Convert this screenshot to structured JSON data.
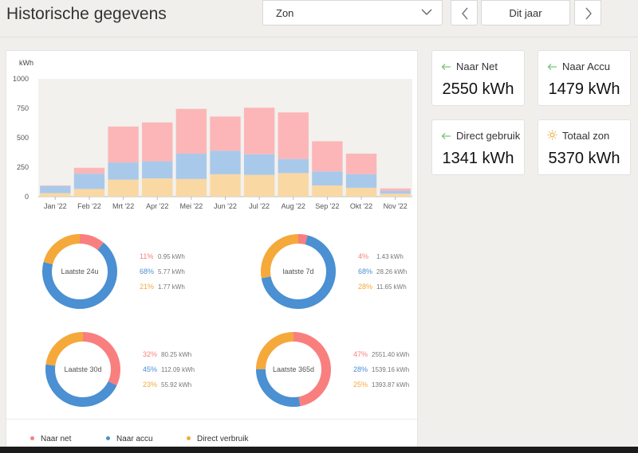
{
  "header": {
    "title": "Historische gegevens",
    "source_select": "Zon",
    "period": "Dit jaar"
  },
  "stats": [
    {
      "id": "net",
      "label": "Naar Net",
      "value": "2550 kWh",
      "icon": "arrow-left-icon"
    },
    {
      "id": "accu",
      "label": "Naar Accu",
      "value": "1479 kWh",
      "icon": "arrow-left-icon"
    },
    {
      "id": "direct",
      "label": "Direct gebruik",
      "value": "1341 kWh",
      "icon": "arrow-left-icon"
    },
    {
      "id": "total",
      "label": "Totaal zon",
      "value": "5370 kWh",
      "icon": "sun-icon"
    }
  ],
  "colors": {
    "naar_net": "#f97f7f",
    "naar_accu": "#4a90d2",
    "direct": "#f5a93a",
    "bar_net": "#fcb6b7",
    "bar_accu": "#a9c9ea",
    "bar_direct": "#f9d8a4",
    "icon_green": "#7cc576",
    "icon_sun": "#e8a93a",
    "chart_bg": "#f2f1ee"
  },
  "chart_data": {
    "type": "bar",
    "stacked": true,
    "ylabel": "kWh",
    "ylim": [
      0,
      1000
    ],
    "yticks": [
      0,
      250,
      500,
      750,
      1000
    ],
    "categories": [
      "Jan '22",
      "Feb '22",
      "Mrt '22",
      "Apr '22",
      "Mei '22",
      "Jun '22",
      "Jul '22",
      "Aug '22",
      "Sep '22",
      "Okt '22",
      "Nov '22"
    ],
    "series": [
      {
        "name": "Direct verbruik",
        "values": [
          30,
          65,
          145,
          155,
          150,
          190,
          185,
          200,
          95,
          75,
          25
        ]
      },
      {
        "name": "Naar accu",
        "values": [
          60,
          130,
          145,
          145,
          215,
          200,
          175,
          120,
          120,
          115,
          25
        ]
      },
      {
        "name": "Naar net",
        "values": [
          5,
          50,
          305,
          330,
          380,
          290,
          395,
          395,
          255,
          175,
          20
        ]
      }
    ],
    "legend": [
      "Naar net",
      "Naar accu",
      "Direct verbruik"
    ],
    "legend_position": "bottom",
    "grid": false
  },
  "donuts": [
    {
      "label": "Laatste 24u",
      "items": [
        {
          "pct": 11,
          "pct_text": "11%",
          "kwh": "0.95 kWh"
        },
        {
          "pct": 68,
          "pct_text": "68%",
          "kwh": "5.77 kWh"
        },
        {
          "pct": 21,
          "pct_text": "21%",
          "kwh": "1.77 kWh"
        }
      ]
    },
    {
      "label": "laatste 7d",
      "items": [
        {
          "pct": 4,
          "pct_text": "4%",
          "kwh": "1.43 kWh"
        },
        {
          "pct": 68,
          "pct_text": "68%",
          "kwh": "28.26 kWh"
        },
        {
          "pct": 28,
          "pct_text": "28%",
          "kwh": "11.65 kWh"
        }
      ]
    },
    {
      "label": "Laatste 30d",
      "items": [
        {
          "pct": 32,
          "pct_text": "32%",
          "kwh": "80.25 kWh"
        },
        {
          "pct": 45,
          "pct_text": "45%",
          "kwh": "112.09 kWh"
        },
        {
          "pct": 23,
          "pct_text": "23%",
          "kwh": "55.92 kWh"
        }
      ]
    },
    {
      "label": "Laatste 365d",
      "items": [
        {
          "pct": 47,
          "pct_text": "47%",
          "kwh": "2551.40 kWh"
        },
        {
          "pct": 28,
          "pct_text": "28%",
          "kwh": "1539.16 kWh"
        },
        {
          "pct": 25,
          "pct_text": "25%",
          "kwh": "1393.87 kWh"
        }
      ]
    }
  ]
}
